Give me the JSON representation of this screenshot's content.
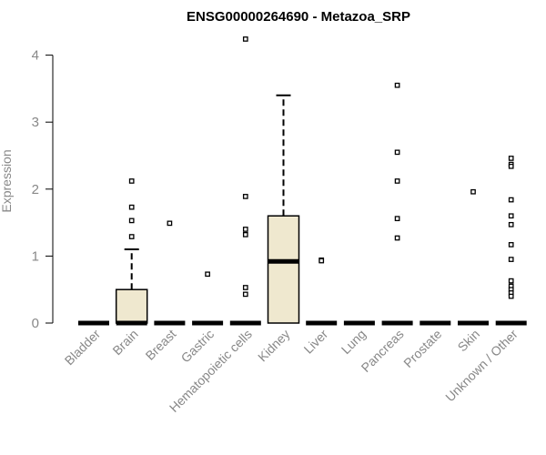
{
  "chart_data": {
    "type": "box",
    "title": "ENSG00000264690 - Metazoa_SRP",
    "xlabel": "",
    "ylabel": "Expression",
    "ylim": [
      0,
      4.2
    ],
    "yticks": [
      "0",
      "1",
      "2",
      "3",
      "4"
    ],
    "colors": {
      "box_fill": "#efe8cf",
      "stroke": "#000000",
      "axis_text": "#888888"
    },
    "categories": [
      "Bladder",
      "Brain",
      "Breast",
      "Gastric",
      "Hematopoietic cells",
      "Kidney",
      "Liver",
      "Lung",
      "Pancreas",
      "Prostate",
      "Skin",
      "Unknown / Other"
    ],
    "boxes": [
      {
        "category": "Bladder",
        "q1": 0,
        "median": 0,
        "q3": 0,
        "whisker_low": 0,
        "whisker_high": 0,
        "outliers": []
      },
      {
        "category": "Brain",
        "q1": 0,
        "median": 0,
        "q3": 0.5,
        "whisker_low": 0,
        "whisker_high": 1.1,
        "outliers": [
          2.12,
          1.73,
          1.53,
          1.29
        ]
      },
      {
        "category": "Breast",
        "q1": 0,
        "median": 0,
        "q3": 0,
        "whisker_low": 0,
        "whisker_high": 0,
        "outliers": [
          1.49
        ]
      },
      {
        "category": "Gastric",
        "q1": 0,
        "median": 0,
        "q3": 0,
        "whisker_low": 0,
        "whisker_high": 0,
        "outliers": [
          0.73
        ]
      },
      {
        "category": "Hematopoietic cells",
        "q1": 0,
        "median": 0,
        "q3": 0,
        "whisker_low": 0,
        "whisker_high": 0,
        "outliers": [
          4.24,
          1.89,
          1.4,
          1.32,
          0.53,
          0.43
        ]
      },
      {
        "category": "Kidney",
        "q1": 0,
        "median": 0.92,
        "q3": 1.6,
        "whisker_low": 0,
        "whisker_high": 3.4,
        "outliers": []
      },
      {
        "category": "Liver",
        "q1": 0,
        "median": 0,
        "q3": 0,
        "whisker_low": 0,
        "whisker_high": 0,
        "outliers": [
          0.94,
          0.93
        ]
      },
      {
        "category": "Lung",
        "q1": 0,
        "median": 0,
        "q3": 0,
        "whisker_low": 0,
        "whisker_high": 0,
        "outliers": []
      },
      {
        "category": "Pancreas",
        "q1": 0,
        "median": 0,
        "q3": 0,
        "whisker_low": 0,
        "whisker_high": 0,
        "outliers": [
          3.55,
          2.55,
          2.12,
          1.56,
          1.27
        ]
      },
      {
        "category": "Prostate",
        "q1": 0,
        "median": 0,
        "q3": 0,
        "whisker_low": 0,
        "whisker_high": 0,
        "outliers": []
      },
      {
        "category": "Skin",
        "q1": 0,
        "median": 0,
        "q3": 0,
        "whisker_low": 0,
        "whisker_high": 0,
        "outliers": [
          1.96
        ]
      },
      {
        "category": "Unknown / Other",
        "q1": 0,
        "median": 0,
        "q3": 0,
        "whisker_low": 0,
        "whisker_high": 0,
        "outliers": [
          2.46,
          2.37,
          2.34,
          1.84,
          1.6,
          1.47,
          1.17,
          0.95,
          0.63,
          0.55,
          0.5,
          0.45,
          0.4
        ]
      }
    ]
  }
}
